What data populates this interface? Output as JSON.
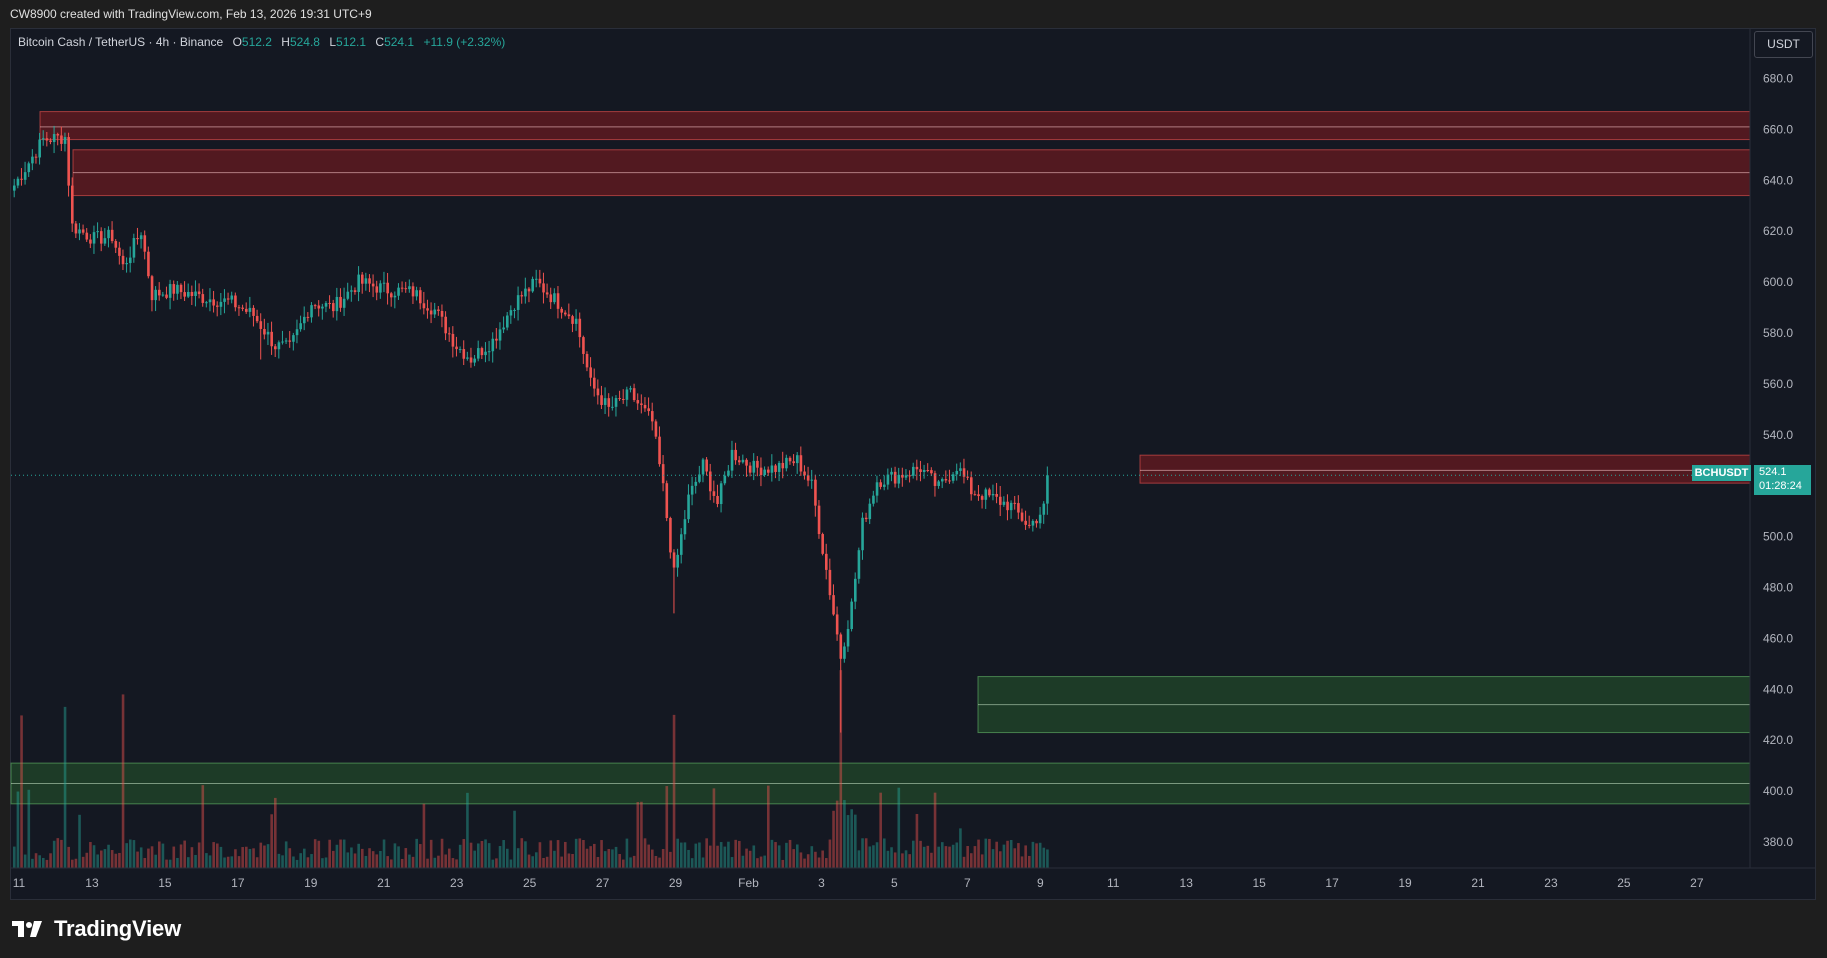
{
  "header": {
    "attribution": "CW8900 created with TradingView.com, Feb 13, 2026 19:31 UTC+9"
  },
  "legend": {
    "symbol": "Bitcoin Cash / TetherUS · 4h · Binance",
    "open_label": "O",
    "open": "512.2",
    "high_label": "H",
    "high": "524.8",
    "low_label": "L",
    "low": "512.1",
    "close_label": "C",
    "close": "524.1",
    "change": "+11.9 (+2.32%)"
  },
  "currency_button": "USDT",
  "last_price": {
    "symbol": "BCHUSDT",
    "price": "524.1",
    "countdown": "01:28:24"
  },
  "footer": {
    "logo_text": "TradingView"
  },
  "colors": {
    "up": "#26a69a",
    "down": "#ef5350",
    "resistance_zone": "#b71c1c",
    "support_zone": "#1b5e20",
    "background": "#141822"
  },
  "chart_data": {
    "type": "candlestick",
    "timeframe": "4h",
    "x_tick_labels": [
      "11",
      "13",
      "15",
      "17",
      "19",
      "21",
      "23",
      "25",
      "27",
      "29",
      "Feb",
      "3",
      "5",
      "7",
      "9",
      "11",
      "13",
      "15",
      "17",
      "19",
      "21",
      "23",
      "25",
      "27"
    ],
    "y_tick_labels": [
      "680.0",
      "660.0",
      "640.0",
      "620.0",
      "600.0",
      "580.0",
      "560.0",
      "540.0",
      "520.0",
      "500.0",
      "480.0",
      "460.0",
      "440.0",
      "420.0",
      "400.0",
      "380.0"
    ],
    "ylim": [
      367,
      690
    ],
    "grid": false,
    "price_path_anchors": [
      {
        "i": 0,
        "p": 638
      },
      {
        "i": 8,
        "p": 656
      },
      {
        "i": 14,
        "p": 657
      },
      {
        "i": 16,
        "p": 622
      },
      {
        "i": 22,
        "p": 617
      },
      {
        "i": 27,
        "p": 618
      },
      {
        "i": 30,
        "p": 606
      },
      {
        "i": 35,
        "p": 620
      },
      {
        "i": 38,
        "p": 595
      },
      {
        "i": 44,
        "p": 597
      },
      {
        "i": 52,
        "p": 594
      },
      {
        "i": 60,
        "p": 592
      },
      {
        "i": 66,
        "p": 587
      },
      {
        "i": 72,
        "p": 575
      },
      {
        "i": 76,
        "p": 574
      },
      {
        "i": 82,
        "p": 592
      },
      {
        "i": 88,
        "p": 590
      },
      {
        "i": 95,
        "p": 600
      },
      {
        "i": 103,
        "p": 597
      },
      {
        "i": 110,
        "p": 596
      },
      {
        "i": 116,
        "p": 589
      },
      {
        "i": 122,
        "p": 575
      },
      {
        "i": 126,
        "p": 570
      },
      {
        "i": 132,
        "p": 577
      },
      {
        "i": 138,
        "p": 592
      },
      {
        "i": 144,
        "p": 600
      },
      {
        "i": 150,
        "p": 592
      },
      {
        "i": 155,
        "p": 585
      },
      {
        "i": 159,
        "p": 560
      },
      {
        "i": 164,
        "p": 550
      },
      {
        "i": 170,
        "p": 556
      },
      {
        "i": 176,
        "p": 545
      },
      {
        "i": 179,
        "p": 519
      },
      {
        "i": 182,
        "p": 485
      },
      {
        "i": 186,
        "p": 515
      },
      {
        "i": 190,
        "p": 528
      },
      {
        "i": 194,
        "p": 513
      },
      {
        "i": 198,
        "p": 533
      },
      {
        "i": 204,
        "p": 527
      },
      {
        "i": 210,
        "p": 527
      },
      {
        "i": 216,
        "p": 530
      },
      {
        "i": 220,
        "p": 520
      },
      {
        "i": 224,
        "p": 487
      },
      {
        "i": 228,
        "p": 453
      },
      {
        "i": 231,
        "p": 473
      },
      {
        "i": 234,
        "p": 505
      },
      {
        "i": 238,
        "p": 522
      },
      {
        "i": 244,
        "p": 524
      },
      {
        "i": 250,
        "p": 527
      },
      {
        "i": 255,
        "p": 519
      },
      {
        "i": 260,
        "p": 528
      },
      {
        "i": 264,
        "p": 518
      },
      {
        "i": 270,
        "p": 515
      },
      {
        "i": 275,
        "p": 512
      },
      {
        "i": 280,
        "p": 504
      },
      {
        "i": 284,
        "p": 511
      },
      {
        "i": 285,
        "p": 524
      }
    ],
    "zones": [
      {
        "kind": "resistance",
        "top": 667,
        "bottom": 656,
        "mid": 661
      },
      {
        "kind": "resistance",
        "top": 652,
        "bottom": 634,
        "mid": 643
      },
      {
        "kind": "resistance",
        "top": 532,
        "bottom": 521,
        "mid": 526
      },
      {
        "kind": "support",
        "top": 445,
        "bottom": 423,
        "mid": 434
      },
      {
        "kind": "support",
        "top": 411,
        "bottom": 395,
        "mid": 403
      }
    ],
    "last_close": 524.1
  }
}
